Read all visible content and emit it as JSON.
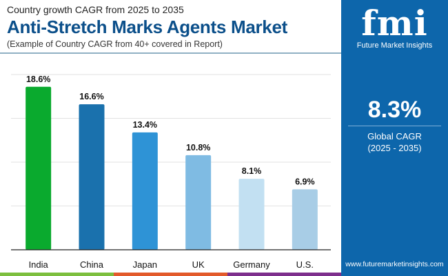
{
  "header": {
    "subtitle": "Country growth CAGR from 2025 to 2035",
    "title": "Anti-Stretch Marks Agents Market",
    "note": "(Example of Country CAGR from 40+ covered in Report)"
  },
  "panel": {
    "logo_text": "fmi",
    "logo_name": "Future Market Insights",
    "cagr_value": "8.3%",
    "cagr_label": "Global CAGR",
    "cagr_period": "(2025 - 2035)",
    "url": "www.futuremarketinsights.com",
    "background": "#0d66ab"
  },
  "chart_data": {
    "type": "bar",
    "categories": [
      "India",
      "China",
      "Japan",
      "UK",
      "Germany",
      "U.S."
    ],
    "values": [
      18.6,
      16.6,
      13.4,
      10.8,
      8.1,
      6.9
    ],
    "labels": [
      "18.6%",
      "16.6%",
      "13.4%",
      "10.8%",
      "8.1%",
      "6.9%"
    ],
    "colors": [
      "#0aaa2e",
      "#1a71ad",
      "#2e93d6",
      "#7fbbe3",
      "#c2e0f2",
      "#a8cde6"
    ],
    "ylim": [
      0,
      20
    ],
    "grid": true
  },
  "stripes": [
    "#7cbf3e",
    "#e35a2a",
    "#7d2e8c"
  ]
}
